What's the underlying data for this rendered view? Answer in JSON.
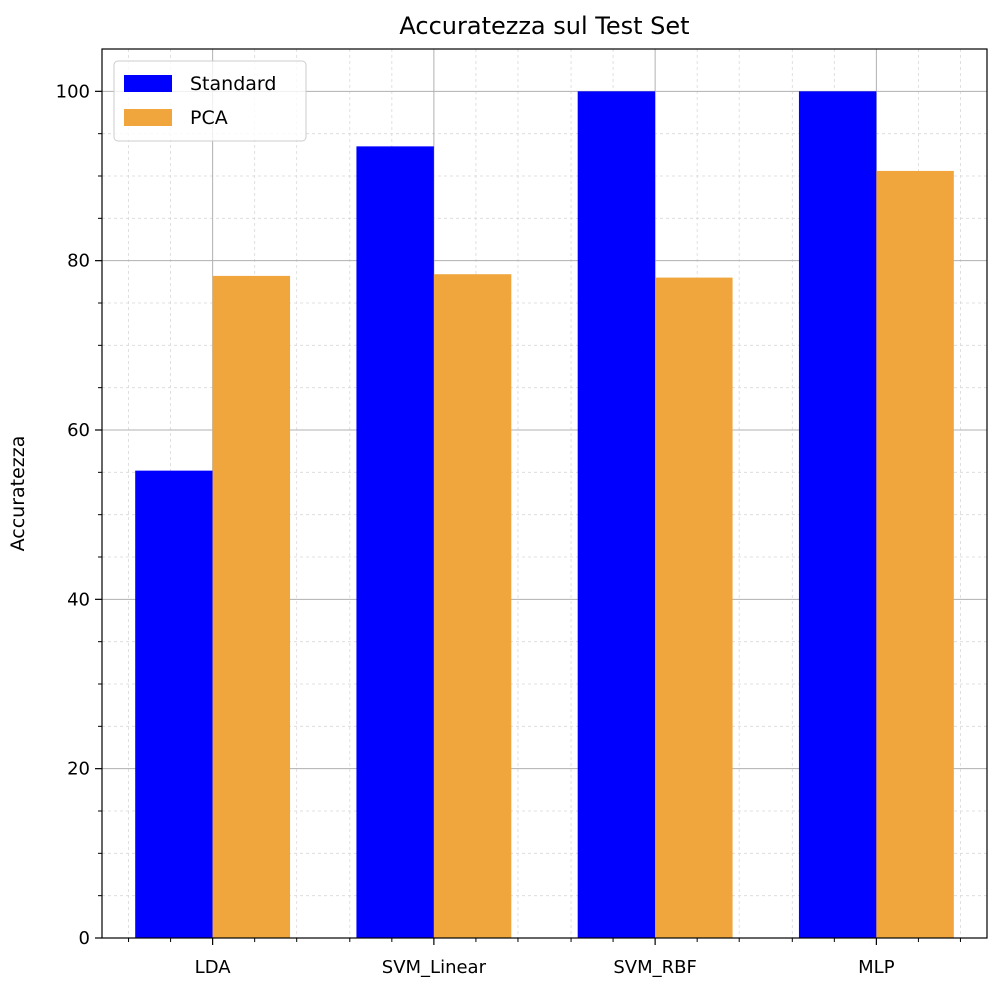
{
  "chart_data": {
    "type": "bar",
    "title": "Accuratezza sul Test Set",
    "xlabel": "",
    "ylabel": "Accuratezza",
    "categories": [
      "LDA",
      "SVM_Linear",
      "SVM_RBF",
      "MLP"
    ],
    "series": [
      {
        "name": "Standard",
        "color": "#0000ff",
        "values": [
          55.2,
          93.5,
          100.0,
          100.0
        ]
      },
      {
        "name": "PCA",
        "color": "#f0a63c",
        "values": [
          78.2,
          78.4,
          78.0,
          90.6
        ]
      }
    ],
    "ylim": [
      0,
      105
    ],
    "yticks": [
      0,
      20,
      40,
      60,
      80,
      100
    ],
    "grid": true,
    "minor_grid": true,
    "legend_position": "top-left"
  }
}
